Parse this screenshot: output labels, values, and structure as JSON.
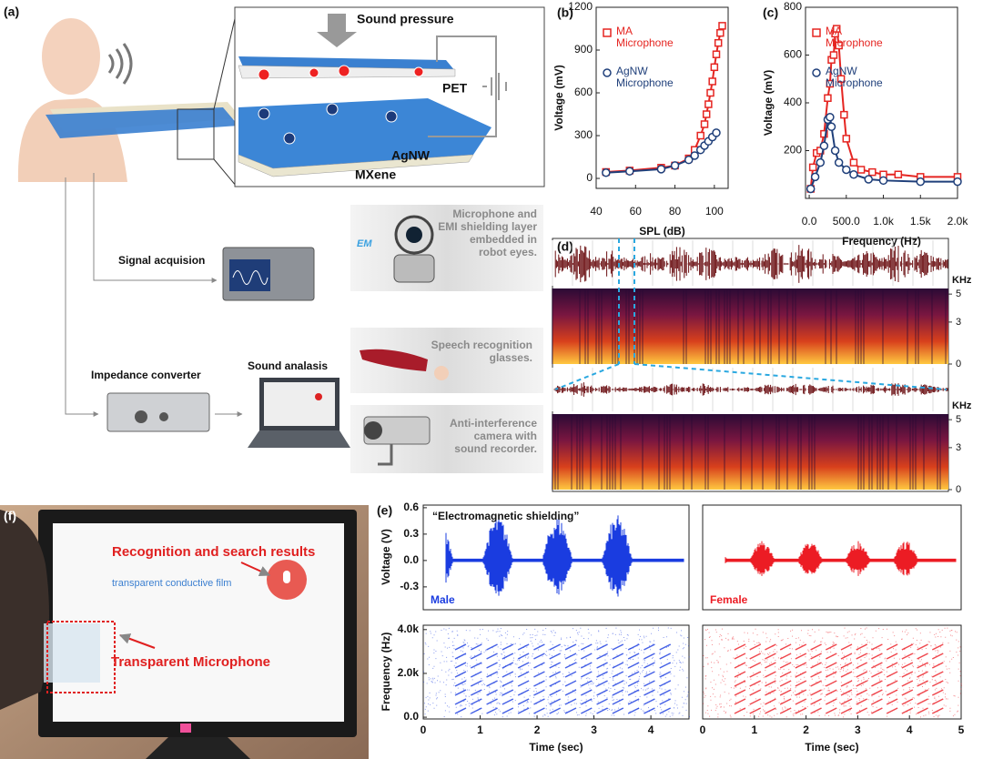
{
  "panel_a": {
    "label": "(a)",
    "sound_pressure": "Sound pressure",
    "pet": "PET",
    "agnw": "AgNW",
    "mxene": "MXene",
    "signal": "Signal acquision",
    "impedance": "Impedance converter",
    "analysis": "Sound analasis",
    "em": "EM",
    "robot": [
      "Microphone and",
      "EMI shielding layer",
      "embedded in",
      "robot eyes."
    ],
    "glasses": [
      "Speech recognition",
      "glasses."
    ],
    "camera": [
      "Anti-interference",
      "camera with",
      "sound recorder."
    ]
  },
  "panel_f": {
    "label": "(f)",
    "search": "transparent conductive film",
    "results": "Recognition and search results",
    "microphone": "Transparent Microphone"
  },
  "chart_data": [
    {
      "type": "scatter",
      "label": "(b)",
      "xlabel": "SPL (dB)",
      "ylabel": "Voltage (mV)",
      "xlim": [
        40,
        107
      ],
      "ylim": [
        -70,
        1200
      ],
      "xticks": [
        40,
        60,
        80,
        100
      ],
      "yticks": [
        0,
        300,
        600,
        900,
        1200
      ],
      "series": [
        {
          "name": "MA Microphone",
          "color": "#e52521",
          "marker": "square",
          "x": [
            45,
            57,
            73,
            80,
            87,
            90,
            93,
            95,
            96,
            97,
            98,
            99,
            100,
            101,
            102,
            103,
            104
          ],
          "y": [
            45,
            55,
            75,
            90,
            140,
            200,
            300,
            380,
            450,
            520,
            600,
            680,
            780,
            870,
            950,
            1020,
            1070
          ]
        },
        {
          "name": "AgNW Microphone",
          "color": "#1f3f7a",
          "marker": "circle",
          "x": [
            45,
            57,
            73,
            80,
            87,
            90,
            93,
            95,
            97,
            99,
            101
          ],
          "y": [
            40,
            50,
            65,
            90,
            130,
            160,
            200,
            230,
            260,
            290,
            320
          ]
        }
      ]
    },
    {
      "type": "scatter",
      "label": "(c)",
      "xlabel": "Frequency (Hz)",
      "ylabel": "Voltage (mV)",
      "xlim": [
        -50,
        2000
      ],
      "ylim": [
        0,
        800
      ],
      "xticks": [
        {
          "value": 0,
          "label": "0.0"
        },
        {
          "value": 500,
          "label": "500.0"
        },
        {
          "value": 1000,
          "label": "1.0k"
        },
        {
          "value": 1500,
          "label": "1.5k"
        },
        {
          "value": 2000,
          "label": "2.0k"
        }
      ],
      "yticks": [
        200,
        400,
        600,
        800
      ],
      "series": [
        {
          "name": "MA Microphone",
          "color": "#e52521",
          "marker": "square",
          "x": [
            20,
            50,
            100,
            150,
            200,
            250,
            280,
            300,
            330,
            350,
            370,
            400,
            430,
            470,
            500,
            600,
            700,
            850,
            1000,
            1200,
            1500,
            2000
          ],
          "y": [
            40,
            130,
            190,
            200,
            270,
            420,
            480,
            580,
            600,
            690,
            710,
            640,
            500,
            350,
            250,
            150,
            120,
            110,
            100,
            100,
            90,
            90
          ]
        },
        {
          "name": "AgNW Microphone",
          "color": "#1f3f7a",
          "marker": "circle",
          "x": [
            20,
            80,
            150,
            200,
            250,
            280,
            300,
            350,
            400,
            500,
            600,
            800,
            1000,
            1500,
            2000
          ],
          "y": [
            40,
            90,
            150,
            220,
            330,
            340,
            300,
            200,
            150,
            120,
            100,
            80,
            75,
            70,
            70
          ]
        }
      ]
    },
    {
      "type": "spectrogram",
      "label": "(d)",
      "ylabel": "KHz",
      "ylim": [
        0,
        5.4
      ],
      "yticks": [
        0,
        3,
        5
      ]
    },
    {
      "type": "waveform",
      "label": "(e)",
      "title": "“Electromagnetic shielding”",
      "name": "Male",
      "color": "#1a3ce0",
      "ylabel": "Voltage (V)",
      "ylim": [
        -0.56,
        0.63
      ],
      "yticks": [
        {
          "value": -0.3,
          "label": "-0.3"
        },
        {
          "value": 0,
          "label": "0.0"
        },
        {
          "value": 0.3,
          "label": "0.3"
        },
        {
          "value": 0.6,
          "label": "0.6"
        }
      ],
      "freq_label": "Frequency (Hz)",
      "freq_lim": [
        -80,
        4200
      ],
      "freq_ticks": [
        {
          "value": 0,
          "label": "0.0"
        },
        {
          "value": 2000,
          "label": "2.0k"
        },
        {
          "value": 4000,
          "label": "4.0k"
        }
      ],
      "xlabel": "Time (sec)",
      "xlim": [
        0,
        4.67
      ],
      "xticks": [
        0,
        1,
        2,
        3,
        4
      ]
    },
    {
      "type": "waveform",
      "name": "Female",
      "color": "#ec1c24",
      "ylim": [
        -0.56,
        0.63
      ],
      "freq_lim": [
        -80,
        4200
      ],
      "xlabel": "Time (sec)",
      "xlim": [
        0,
        5
      ],
      "xticks": [
        0,
        1,
        2,
        3,
        4,
        5
      ]
    }
  ]
}
